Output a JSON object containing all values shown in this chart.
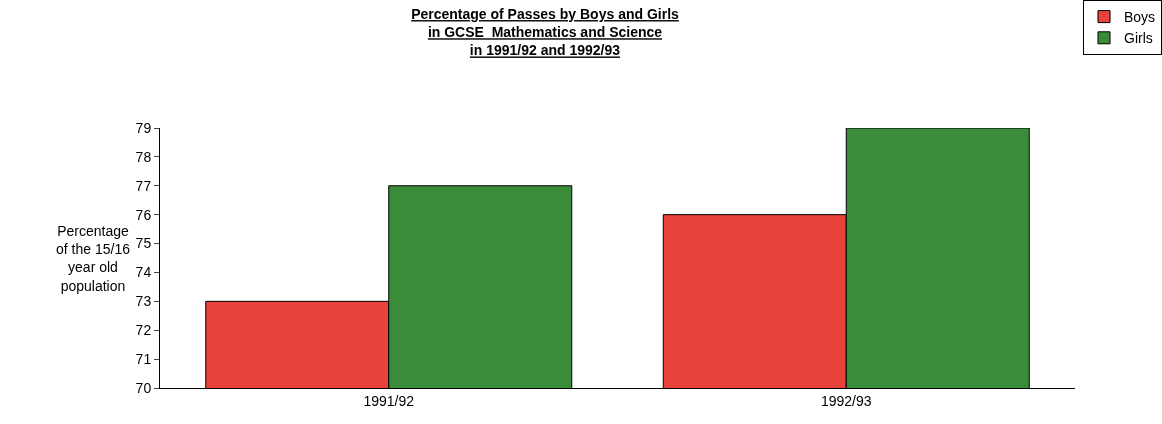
{
  "chart_data": {
    "type": "bar",
    "title": "Percentage of Passes by Boys and Girls\nin GCSE  Mathematics and Science\nin 1991/92 and 1992/93",
    "ylabel": "Percentage\nof the 15/16\nyear old\npopulation",
    "categories": [
      "1991/92",
      "1992/93"
    ],
    "series": [
      {
        "name": "Boys",
        "color": "#e8423a",
        "values": [
          73,
          76
        ]
      },
      {
        "name": "Girls",
        "color": "#3a8c3a",
        "values": [
          77,
          79
        ]
      }
    ],
    "ylim": [
      70,
      79
    ],
    "yticks": [
      70,
      71,
      72,
      73,
      74,
      75,
      76,
      77,
      78,
      79
    ],
    "legend": "top right"
  }
}
